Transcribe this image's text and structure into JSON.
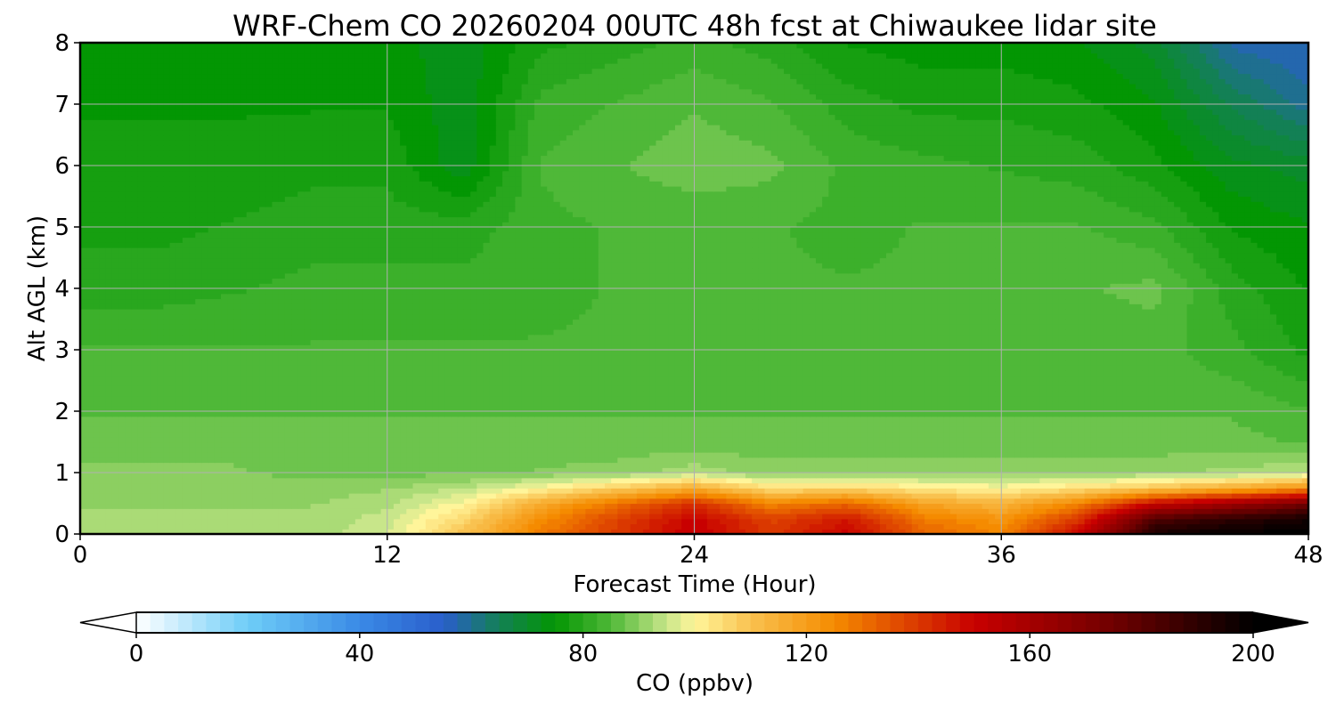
{
  "chart_data": {
    "type": "heatmap",
    "title": "WRF-Chem CO  20260204 00UTC 48h fcst at Chiwaukee lidar site",
    "xlabel": "Forecast Time (Hour)",
    "ylabel": "Alt AGL (km)",
    "xlim": [
      0,
      48
    ],
    "ylim": [
      0,
      8
    ],
    "xticks": [
      "0",
      "12",
      "24",
      "36",
      "48"
    ],
    "yticks": [
      "0",
      "1",
      "2",
      "3",
      "4",
      "5",
      "6",
      "7",
      "8"
    ],
    "grid": true,
    "colorbar": {
      "label": "CO  (ppbv)",
      "range": [
        0,
        200
      ],
      "ticks": [
        "0",
        "40",
        "80",
        "120",
        "160",
        "200"
      ],
      "extend": "both",
      "stops": [
        {
          "v": 0,
          "c": "#ffffff"
        },
        {
          "v": 20,
          "c": "#6ecdf7"
        },
        {
          "v": 40,
          "c": "#3a8ae6"
        },
        {
          "v": 55,
          "c": "#2a5ecb"
        },
        {
          "v": 65,
          "c": "#138055"
        },
        {
          "v": 75,
          "c": "#039603"
        },
        {
          "v": 85,
          "c": "#4fb838"
        },
        {
          "v": 95,
          "c": "#c8e68a"
        },
        {
          "v": 100,
          "c": "#fff59a"
        },
        {
          "v": 110,
          "c": "#f9c250"
        },
        {
          "v": 125,
          "c": "#f58b00"
        },
        {
          "v": 150,
          "c": "#c80000"
        },
        {
          "v": 175,
          "c": "#700000"
        },
        {
          "v": 200,
          "c": "#000000"
        }
      ]
    },
    "hours": [
      0,
      3,
      6,
      9,
      12,
      15,
      18,
      21,
      24,
      27,
      30,
      33,
      36,
      39,
      42,
      45,
      48
    ],
    "altitudes_km": [
      0.0,
      0.25,
      0.5,
      0.75,
      1.0,
      1.5,
      2.0,
      2.5,
      3.0,
      4.0,
      5.0,
      6.0,
      7.0,
      8.0
    ],
    "values_ppbv": [
      [
        92,
        92,
        92,
        92,
        96,
        110,
        128,
        140,
        152,
        140,
        150,
        132,
        126,
        150,
        195,
        200,
        200
      ],
      [
        92,
        92,
        92,
        92,
        95,
        106,
        124,
        138,
        150,
        138,
        146,
        128,
        122,
        140,
        182,
        190,
        196
      ],
      [
        91,
        91,
        91,
        91,
        93,
        100,
        116,
        130,
        142,
        126,
        132,
        118,
        114,
        126,
        150,
        162,
        174
      ],
      [
        90,
        90,
        90,
        90,
        91,
        94,
        100,
        108,
        116,
        104,
        106,
        102,
        100,
        104,
        110,
        116,
        124
      ],
      [
        89,
        89,
        89,
        88,
        88,
        88,
        89,
        90,
        93,
        90,
        90,
        90,
        91,
        90,
        91,
        92,
        94
      ],
      [
        88,
        88,
        88,
        87,
        87,
        87,
        87,
        87,
        87,
        87,
        87,
        87,
        87,
        87,
        87,
        87,
        86
      ],
      [
        86,
        86,
        86,
        86,
        86,
        86,
        86,
        86,
        86,
        86,
        86,
        86,
        86,
        86,
        86,
        86,
        84
      ],
      [
        85,
        85,
        85,
        85,
        85,
        85,
        85,
        85,
        85,
        85,
        85,
        85,
        85,
        85,
        85,
        84,
        81
      ],
      [
        84,
        84,
        84,
        84,
        84,
        84,
        84,
        84,
        85,
        85,
        85,
        84,
        84,
        84,
        85,
        82,
        78
      ],
      [
        80,
        80,
        81,
        82,
        82,
        82,
        83,
        84,
        84,
        84,
        84,
        84,
        85,
        86,
        87,
        80,
        76
      ],
      [
        78,
        78,
        79,
        80,
        80,
        80,
        83,
        84,
        84,
        84,
        83,
        84,
        84,
        84,
        82,
        76,
        74
      ],
      [
        77,
        77,
        77,
        78,
        78,
        72,
        84,
        86,
        88,
        87,
        83,
        82,
        81,
        80,
        77,
        72,
        70
      ],
      [
        76,
        76,
        76,
        76,
        76,
        72,
        82,
        84,
        86,
        84,
        80,
        78,
        78,
        77,
        74,
        66,
        60
      ],
      [
        75,
        75,
        75,
        75,
        75,
        72,
        78,
        80,
        82,
        80,
        76,
        75,
        75,
        74,
        70,
        58,
        56
      ]
    ]
  }
}
